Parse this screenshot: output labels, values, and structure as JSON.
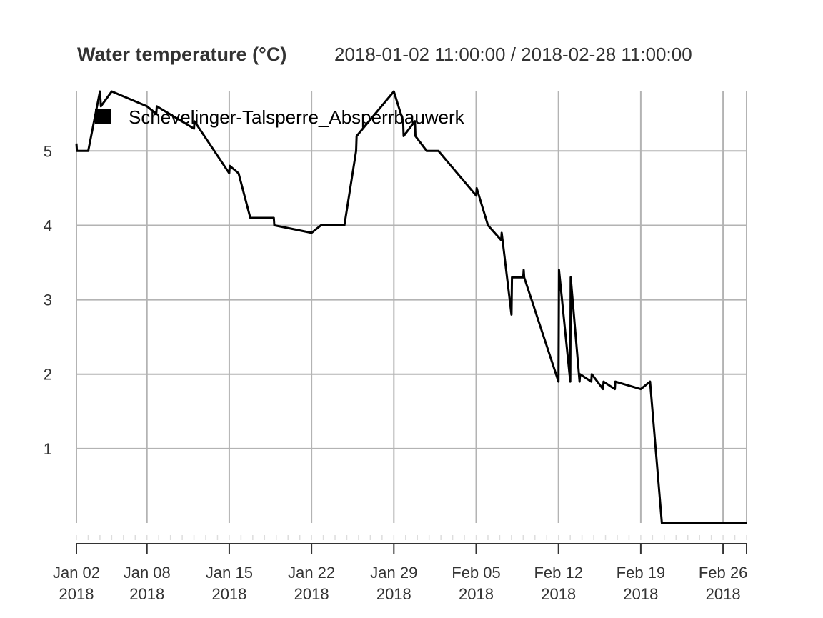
{
  "chart_data": {
    "type": "line",
    "title": "Water temperature (°C)",
    "subtitle": "2018-01-02 11:00:00 / 2018-02-28 11:00:00",
    "legend": {
      "position": "top-left",
      "entries": [
        "Schevelinger-Talsperre_Absperrbauwerk"
      ]
    },
    "grid": true,
    "x_range": [
      "2018-01-02 11:00",
      "2018-02-28 11:00"
    ],
    "ylim": [
      0,
      5.8
    ],
    "y_ticks": [
      {
        "value": 1,
        "label": "1"
      },
      {
        "value": 2,
        "label": "2"
      },
      {
        "value": 3,
        "label": "3"
      },
      {
        "value": 4,
        "label": "4"
      },
      {
        "value": 5,
        "label": "5"
      }
    ],
    "x_ticks": [
      {
        "date": "2018-01-02 11:00",
        "line1": "Jan 02",
        "line2": "2018"
      },
      {
        "date": "2018-01-08 11:00",
        "line1": "Jan 08",
        "line2": "2018"
      },
      {
        "date": "2018-01-15 11:00",
        "line1": "Jan 15",
        "line2": "2018"
      },
      {
        "date": "2018-01-22 11:00",
        "line1": "Jan 22",
        "line2": "2018"
      },
      {
        "date": "2018-01-29 11:00",
        "line1": "Jan 29",
        "line2": "2018"
      },
      {
        "date": "2018-02-05 11:00",
        "line1": "Feb 05",
        "line2": "2018"
      },
      {
        "date": "2018-02-12 11:00",
        "line1": "Feb 12",
        "line2": "2018"
      },
      {
        "date": "2018-02-19 11:00",
        "line1": "Feb 19",
        "line2": "2018"
      },
      {
        "date": "2018-02-26 11:00",
        "line1": "Feb 26",
        "line2": "2018"
      }
    ],
    "series": [
      {
        "name": "Schevelinger-Talsperre_Absperrbauwerk",
        "color": "#000000",
        "points": [
          [
            "2018-01-02 11:00",
            5.1
          ],
          [
            "2018-01-02 12:00",
            5.0
          ],
          [
            "2018-01-03 11:00",
            5.0
          ],
          [
            "2018-01-04 11:00",
            5.8
          ],
          [
            "2018-01-04 13:00",
            5.6
          ],
          [
            "2018-01-05 11:00",
            5.8
          ],
          [
            "2018-01-08 11:00",
            5.6
          ],
          [
            "2018-01-09 06:00",
            5.5
          ],
          [
            "2018-01-09 07:00",
            5.6
          ],
          [
            "2018-01-12 11:00",
            5.3
          ],
          [
            "2018-01-12 12:00",
            5.4
          ],
          [
            "2018-01-15 11:00",
            4.7
          ],
          [
            "2018-01-15 12:00",
            4.8
          ],
          [
            "2018-01-16 06:00",
            4.7
          ],
          [
            "2018-01-17 06:00",
            4.1
          ],
          [
            "2018-01-19 06:00",
            4.1
          ],
          [
            "2018-01-19 07:00",
            4.0
          ],
          [
            "2018-01-22 11:00",
            3.9
          ],
          [
            "2018-01-23 06:00",
            4.0
          ],
          [
            "2018-01-25 06:00",
            4.0
          ],
          [
            "2018-01-26 06:00",
            5.0
          ],
          [
            "2018-01-26 07:00",
            5.2
          ],
          [
            "2018-01-29 11:00",
            5.8
          ],
          [
            "2018-01-30 06:00",
            5.4
          ],
          [
            "2018-01-30 07:00",
            5.2
          ],
          [
            "2018-01-31 06:00",
            5.4
          ],
          [
            "2018-01-31 07:00",
            5.2
          ],
          [
            "2018-02-01 06:00",
            5.0
          ],
          [
            "2018-02-02 06:00",
            5.0
          ],
          [
            "2018-02-05 11:00",
            4.4
          ],
          [
            "2018-02-05 12:00",
            4.5
          ],
          [
            "2018-02-06 11:00",
            4.0
          ],
          [
            "2018-02-07 14:00",
            3.8
          ],
          [
            "2018-02-07 15:00",
            3.9
          ],
          [
            "2018-02-08 11:00",
            2.8
          ],
          [
            "2018-02-08 12:00",
            3.3
          ],
          [
            "2018-02-09 06:00",
            3.3
          ],
          [
            "2018-02-09 11:00",
            3.3
          ],
          [
            "2018-02-09 12:00",
            3.4
          ],
          [
            "2018-02-09 13:00",
            3.3
          ],
          [
            "2018-02-12 11:00",
            1.9
          ],
          [
            "2018-02-12 12:00",
            3.4
          ],
          [
            "2018-02-13 11:00",
            1.9
          ],
          [
            "2018-02-13 12:00",
            3.3
          ],
          [
            "2018-02-14 06:00",
            1.9
          ],
          [
            "2018-02-14 07:00",
            2.0
          ],
          [
            "2018-02-15 06:00",
            1.9
          ],
          [
            "2018-02-15 07:00",
            2.0
          ],
          [
            "2018-02-16 06:00",
            1.8
          ],
          [
            "2018-02-16 07:00",
            1.9
          ],
          [
            "2018-02-17 06:00",
            1.8
          ],
          [
            "2018-02-17 07:00",
            1.9
          ],
          [
            "2018-02-19 11:00",
            1.8
          ],
          [
            "2018-02-20 06:00",
            1.9
          ],
          [
            "2018-02-21 06:00",
            0.0
          ],
          [
            "2018-02-28 11:00",
            0.0
          ]
        ]
      }
    ]
  }
}
